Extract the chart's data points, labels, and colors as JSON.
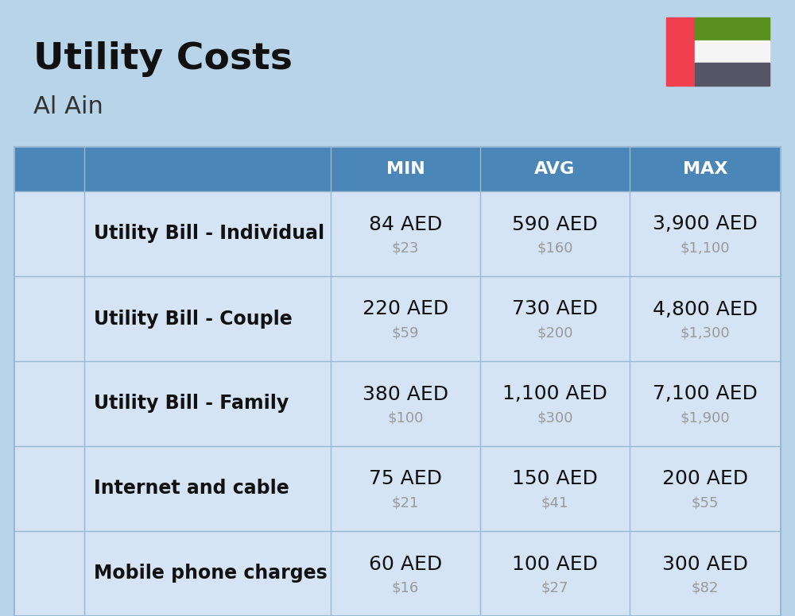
{
  "title": "Utility Costs",
  "subtitle": "Al Ain",
  "background_color": "#b8d4e8",
  "header_bg_color": "#4a86b8",
  "header_text_color": "#ffffff",
  "row_bg_color": "#d4e4f4",
  "col_header_labels": [
    "MIN",
    "AVG",
    "MAX"
  ],
  "rows": [
    {
      "label": "Utility Bill - Individual",
      "min_aed": "84 AED",
      "min_usd": "$23",
      "avg_aed": "590 AED",
      "avg_usd": "$160",
      "max_aed": "3,900 AED",
      "max_usd": "$1,100"
    },
    {
      "label": "Utility Bill - Couple",
      "min_aed": "220 AED",
      "min_usd": "$59",
      "avg_aed": "730 AED",
      "avg_usd": "$200",
      "max_aed": "4,800 AED",
      "max_usd": "$1,300"
    },
    {
      "label": "Utility Bill - Family",
      "min_aed": "380 AED",
      "min_usd": "$100",
      "avg_aed": "1,100 AED",
      "avg_usd": "$300",
      "max_aed": "7,100 AED",
      "max_usd": "$1,900"
    },
    {
      "label": "Internet and cable",
      "min_aed": "75 AED",
      "min_usd": "$21",
      "avg_aed": "150 AED",
      "avg_usd": "$41",
      "max_aed": "200 AED",
      "max_usd": "$55"
    },
    {
      "label": "Mobile phone charges",
      "min_aed": "60 AED",
      "min_usd": "$16",
      "avg_aed": "100 AED",
      "avg_usd": "$27",
      "max_aed": "300 AED",
      "max_usd": "$82"
    }
  ],
  "flag_red": "#f04050",
  "flag_green": "#5a9020",
  "flag_white": "#f5f5f5",
  "flag_dark": "#555565",
  "aed_fontsize": 18,
  "usd_fontsize": 13,
  "label_fontsize": 17,
  "header_fontsize": 16,
  "title_fontsize": 34,
  "subtitle_fontsize": 22,
  "usd_color": "#999999",
  "label_color": "#111111",
  "divider_color": "#9ab8d0"
}
